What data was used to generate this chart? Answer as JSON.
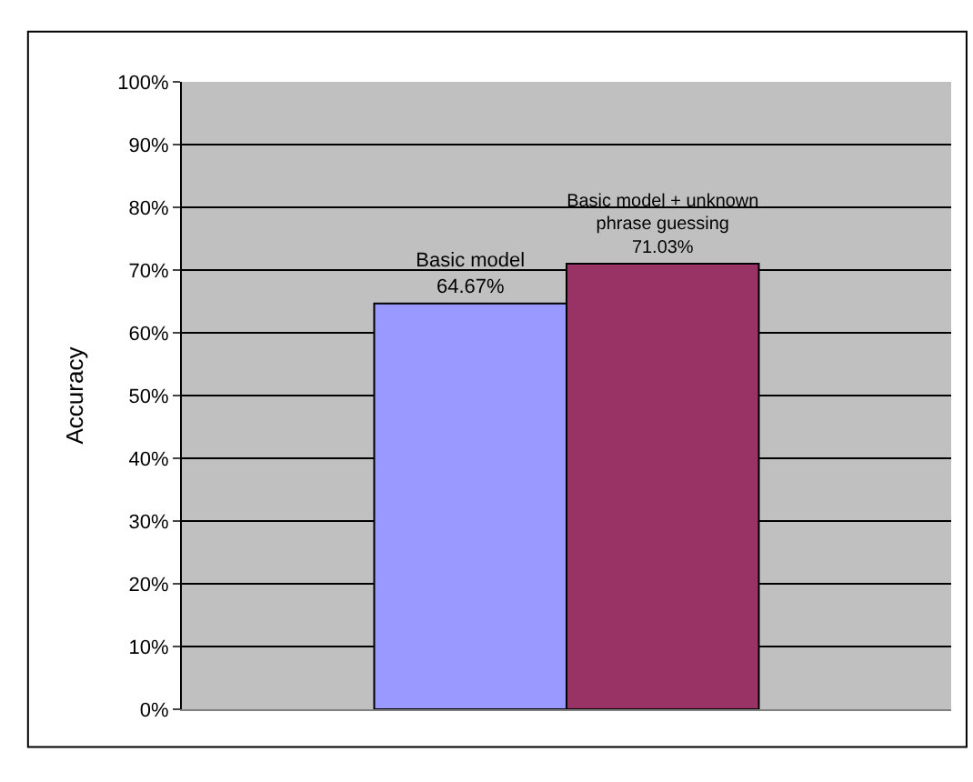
{
  "chart_data": {
    "type": "bar",
    "ylabel": "Accuracy",
    "categories": [
      null
    ],
    "series": [
      {
        "name": "Basic model",
        "color": "#9999ff",
        "values": [
          64.67
        ],
        "value_labels": [
          "64.67%"
        ]
      },
      {
        "name": "Basic model + unknown phrase guessing",
        "color": "#993366",
        "values": [
          71.03
        ],
        "value_labels": [
          "71.03%"
        ]
      }
    ],
    "ylim": [
      0,
      100
    ],
    "yticks": [
      {
        "value": 0,
        "label": "0%"
      },
      {
        "value": 10,
        "label": "10%"
      },
      {
        "value": 20,
        "label": "20%"
      },
      {
        "value": 30,
        "label": "30%"
      },
      {
        "value": 40,
        "label": "40%"
      },
      {
        "value": 50,
        "label": "50%"
      },
      {
        "value": 60,
        "label": "60%"
      },
      {
        "value": 70,
        "label": "70%"
      },
      {
        "value": 80,
        "label": "80%"
      },
      {
        "value": 90,
        "label": "90%"
      },
      {
        "value": 100,
        "label": "100%"
      }
    ],
    "grid": "y",
    "legend": false
  }
}
